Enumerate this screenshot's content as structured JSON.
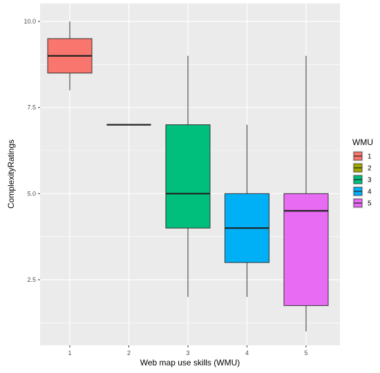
{
  "chart_data": {
    "type": "box",
    "xlabel": "Web map use skills (WMU)",
    "ylabel": "ComplexityRatings",
    "ylim": [
      1.0,
      10.4
    ],
    "yticks": [
      "2.5",
      "5.0",
      "7.5",
      "10.0"
    ],
    "ytick_values": [
      2.5,
      5.0,
      7.5,
      10.0
    ],
    "categories": [
      "1",
      "2",
      "3",
      "4",
      "5"
    ],
    "legend": {
      "title": "WMU",
      "position": "right",
      "items": [
        "1",
        "2",
        "3",
        "4",
        "5"
      ]
    },
    "boxes": [
      {
        "name": "1",
        "whisker_low": 8.0,
        "q1": 8.5,
        "median": 9.0,
        "q3": 9.5,
        "whisker_high": 10.0,
        "color": "#F8766D"
      },
      {
        "name": "2",
        "whisker_low": 7.0,
        "q1": 7.0,
        "median": 7.0,
        "q3": 7.0,
        "whisker_high": 7.0,
        "color": "#A3A500"
      },
      {
        "name": "3",
        "whisker_low": 2.0,
        "q1": 4.0,
        "median": 5.0,
        "q3": 7.0,
        "whisker_high": 9.0,
        "color": "#00BF7D"
      },
      {
        "name": "4",
        "whisker_low": 2.0,
        "q1": 3.0,
        "median": 4.0,
        "q3": 5.0,
        "whisker_high": 7.0,
        "color": "#00B0F6"
      },
      {
        "name": "5",
        "whisker_low": 1.0,
        "q1": 1.75,
        "median": 4.5,
        "q3": 5.0,
        "whisker_high": 9.0,
        "color": "#E76BF3"
      }
    ],
    "grid": true,
    "panel_background": "#EBEBEB",
    "gridline_color": "#FFFFFF"
  }
}
